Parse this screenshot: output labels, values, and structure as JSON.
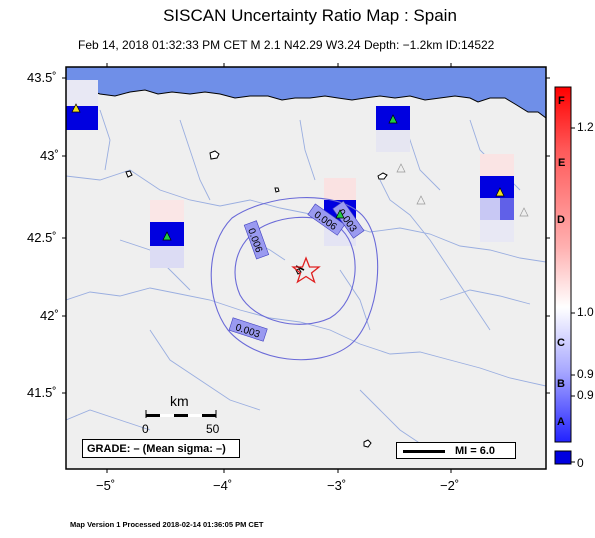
{
  "title": "SISCAN Uncertainty Ratio Map : Spain",
  "subtitle": "Feb 14, 2018 01:32:33 PM CET   M 2.1    N42.29 W3.24   Depth: −1.2km   ID:14522",
  "lat_labels": [
    "43.5˚",
    "43˚",
    "42.5˚",
    "42˚",
    "41.5˚"
  ],
  "lon_labels": [
    "−5˚",
    "−4˚",
    "−3˚",
    "−2˚"
  ],
  "contour_labels": [
    "0.006",
    "0.003",
    "0.006",
    "0.003"
  ],
  "scale_bar": {
    "title": "km",
    "tick0": "0",
    "tick50": "50"
  },
  "grade_text": "GRADE: – (Mean sigma: –)",
  "mi_text": "MI = 6.0",
  "colorbar": {
    "letters": [
      "F",
      "E",
      "D",
      "C",
      "B",
      "A"
    ],
    "values": [
      "1.2",
      "1.0",
      "0.9",
      "0.9",
      "0"
    ]
  },
  "footer": "Map Version 1 Processed 2018-02-14 01:36:05 PM CET",
  "colors": {
    "sea": "#6f8fe8",
    "land": "#efefef",
    "river": "#9aaee0",
    "contour": "#6a6ad8",
    "epicenter": "#e02020",
    "high": "#0000e0"
  },
  "stations": [
    {
      "label": "station-green-1",
      "color": "#22cc44"
    },
    {
      "label": "station-green-2",
      "color": "#22cc44"
    },
    {
      "label": "station-green-3",
      "color": "#22cc44"
    },
    {
      "label": "station-yellow-1",
      "color": "#f0e020"
    },
    {
      "label": "station-yellow-2",
      "color": "#f0e020"
    }
  ]
}
